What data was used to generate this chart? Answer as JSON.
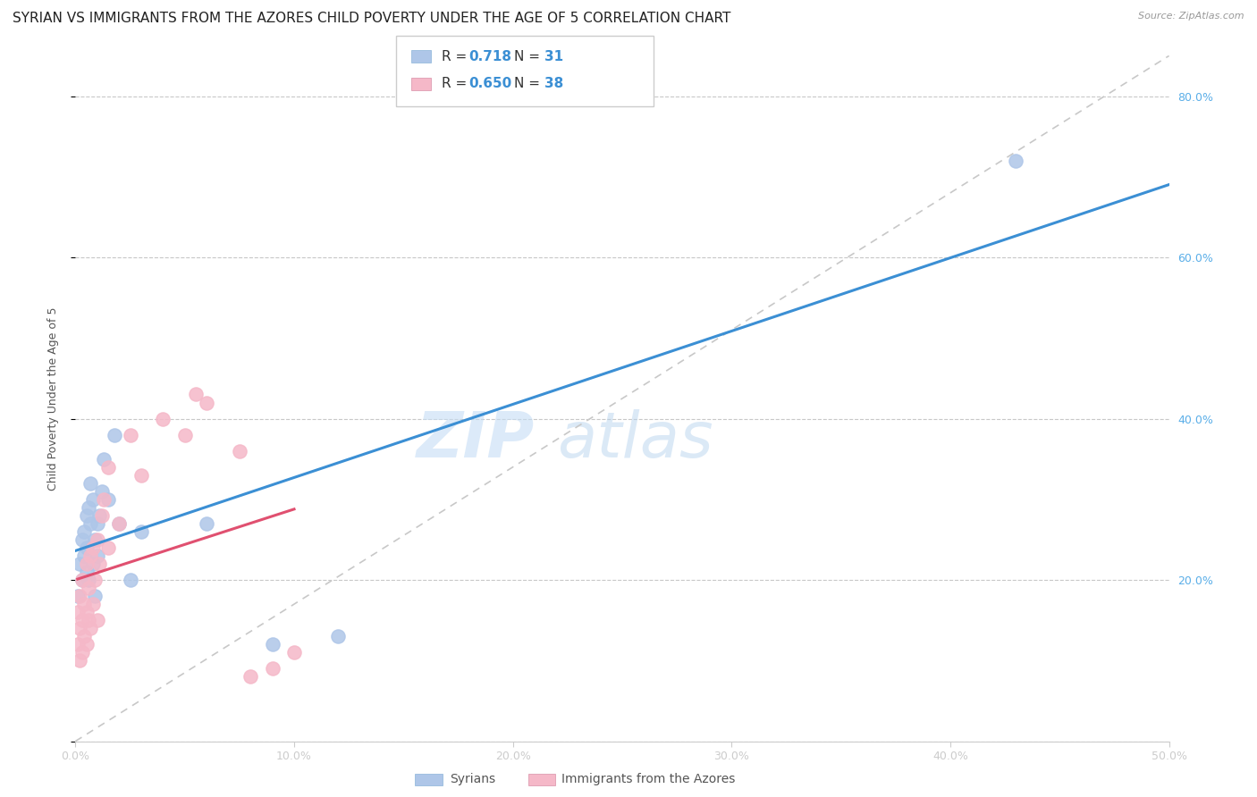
{
  "title": "SYRIAN VS IMMIGRANTS FROM THE AZORES CHILD POVERTY UNDER THE AGE OF 5 CORRELATION CHART",
  "source": "Source: ZipAtlas.com",
  "ylabel": "Child Poverty Under the Age of 5",
  "xlim": [
    0.0,
    0.5
  ],
  "ylim": [
    0.0,
    0.85
  ],
  "xticks": [
    0.0,
    0.1,
    0.2,
    0.3,
    0.4,
    0.5
  ],
  "yticks": [
    0.0,
    0.2,
    0.4,
    0.6,
    0.8
  ],
  "xticklabels": [
    "0.0%",
    "10.0%",
    "20.0%",
    "30.0%",
    "40.0%",
    "50.0%"
  ],
  "yticklabels": [
    "",
    "20.0%",
    "40.0%",
    "60.0%",
    "80.0%"
  ],
  "syrians_color": "#aec6e8",
  "azores_color": "#f5b8c8",
  "trendline_syrians_color": "#3b8fd4",
  "trendline_azores_color": "#e05070",
  "diagonal_color": "#c8c8c8",
  "watermark_zip": "ZIP",
  "watermark_atlas": "atlas",
  "title_fontsize": 11,
  "axis_label_fontsize": 9,
  "tick_fontsize": 9,
  "right_tick_color": "#5aaee8",
  "syrians_x": [
    0.001,
    0.002,
    0.003,
    0.003,
    0.004,
    0.004,
    0.005,
    0.005,
    0.005,
    0.006,
    0.006,
    0.007,
    0.007,
    0.008,
    0.008,
    0.009,
    0.009,
    0.01,
    0.01,
    0.011,
    0.012,
    0.013,
    0.015,
    0.018,
    0.02,
    0.025,
    0.03,
    0.06,
    0.09,
    0.12,
    0.43
  ],
  "syrians_y": [
    0.18,
    0.22,
    0.2,
    0.25,
    0.23,
    0.26,
    0.21,
    0.24,
    0.28,
    0.2,
    0.29,
    0.27,
    0.32,
    0.22,
    0.3,
    0.25,
    0.18,
    0.23,
    0.27,
    0.28,
    0.31,
    0.35,
    0.3,
    0.38,
    0.27,
    0.2,
    0.26,
    0.27,
    0.12,
    0.13,
    0.72
  ],
  "azores_x": [
    0.001,
    0.001,
    0.002,
    0.002,
    0.002,
    0.003,
    0.003,
    0.003,
    0.004,
    0.004,
    0.005,
    0.005,
    0.005,
    0.006,
    0.006,
    0.007,
    0.007,
    0.008,
    0.008,
    0.009,
    0.01,
    0.01,
    0.011,
    0.012,
    0.013,
    0.015,
    0.015,
    0.02,
    0.025,
    0.03,
    0.04,
    0.05,
    0.055,
    0.06,
    0.075,
    0.08,
    0.09,
    0.1
  ],
  "azores_y": [
    0.12,
    0.16,
    0.1,
    0.14,
    0.18,
    0.11,
    0.15,
    0.2,
    0.13,
    0.17,
    0.12,
    0.16,
    0.22,
    0.15,
    0.19,
    0.14,
    0.23,
    0.17,
    0.24,
    0.2,
    0.15,
    0.25,
    0.22,
    0.28,
    0.3,
    0.24,
    0.34,
    0.27,
    0.38,
    0.33,
    0.4,
    0.38,
    0.43,
    0.42,
    0.36,
    0.08,
    0.09,
    0.11
  ],
  "legend_syrians_r": "0.718",
  "legend_syrians_n": "31",
  "legend_azores_r": "0.650",
  "legend_azores_n": "38"
}
